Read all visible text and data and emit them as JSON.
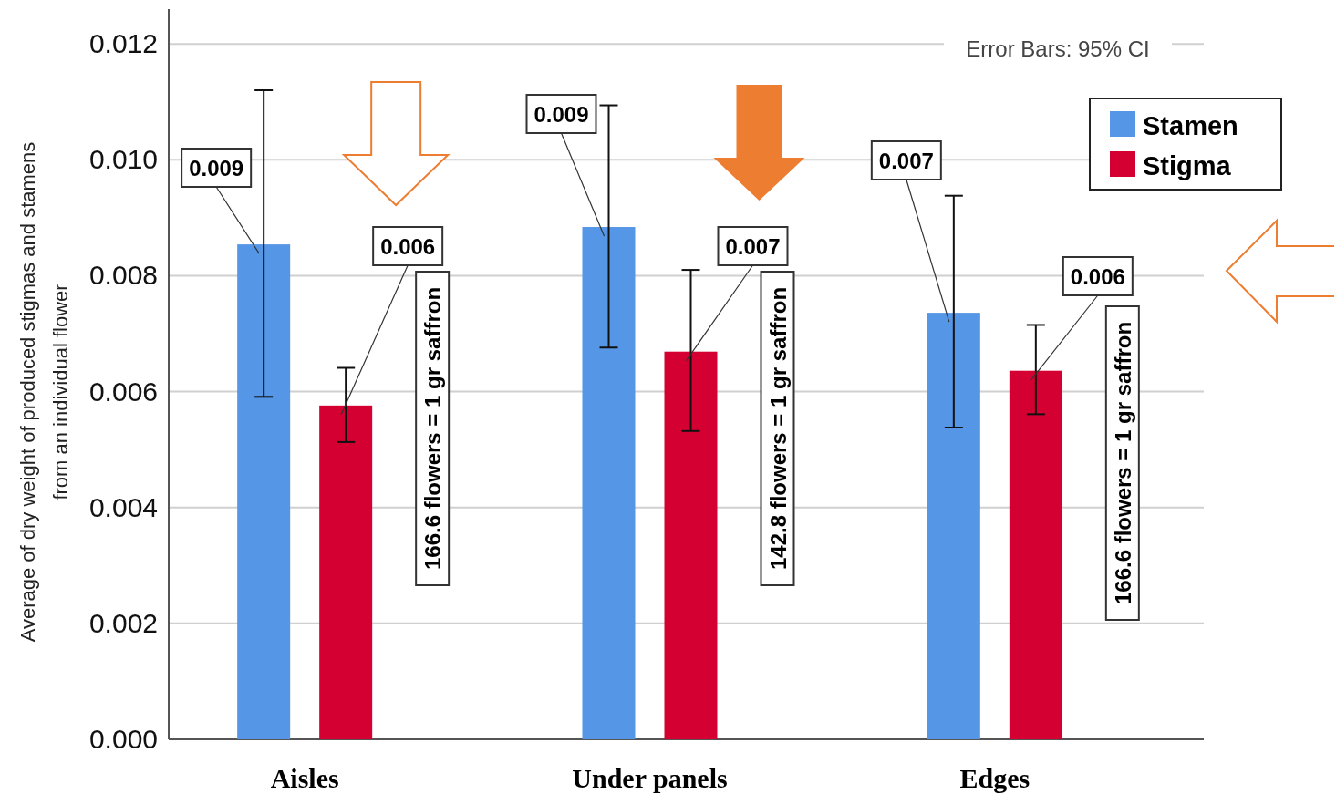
{
  "chart_data": {
    "type": "bar",
    "ylabel": "Average of dry weight of produced stigmas and stamens\nfrom an individual flower",
    "categories": [
      "Aisles",
      "Under panels",
      "Edges"
    ],
    "series": [
      {
        "name": "Stamen",
        "color": "#5596e6",
        "values": [
          0.00854,
          0.00884,
          0.00736
        ],
        "errors": [
          [
            0.00591,
            0.0112
          ],
          [
            0.00676,
            0.01094
          ],
          [
            0.00538,
            0.00938
          ]
        ],
        "value_labels": [
          "0.009",
          "0.009",
          "0.007"
        ]
      },
      {
        "name": "Stigma",
        "color": "#d50032",
        "values": [
          0.00576,
          0.00669,
          0.00636
        ],
        "errors": [
          [
            0.00513,
            0.00641
          ],
          [
            0.00532,
            0.0081
          ],
          [
            0.00561,
            0.00715
          ]
        ],
        "value_labels": [
          "0.006",
          "0.007",
          "0.006"
        ]
      }
    ],
    "ylim": [
      0,
      0.0126
    ],
    "yticks": [
      {
        "value": 0,
        "label": "0.000"
      },
      {
        "value": 0.002,
        "label": "0.002"
      },
      {
        "value": 0.004,
        "label": "0.004"
      },
      {
        "value": 0.006,
        "label": "0.006"
      },
      {
        "value": 0.008,
        "label": "0.008"
      },
      {
        "value": 0.01,
        "label": "0.010"
      },
      {
        "value": 0.012,
        "label": "0.012"
      }
    ],
    "grid": "y",
    "legend": "top right",
    "annotations": [
      "Error Bars: 95% CI",
      "166.6 flowers = 1 gr saffron",
      "142.8 flowers = 1 gr saffron",
      "166.6 flowers = 1 gr saffron"
    ]
  }
}
